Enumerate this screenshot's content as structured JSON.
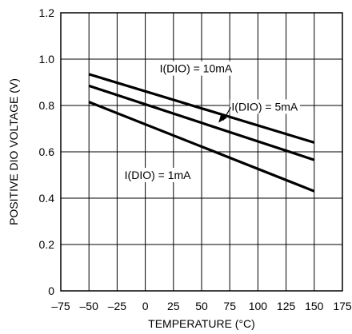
{
  "chart_data": {
    "type": "line",
    "title": "",
    "xlabel": "TEMPERATURE (°C)",
    "ylabel": "POSITIVE DIO VOLTAGE (V)",
    "xlim": [
      -75,
      175
    ],
    "ylim": [
      0,
      1.2
    ],
    "xticks": [
      -75,
      -50,
      -25,
      0,
      25,
      50,
      75,
      100,
      125,
      150,
      175
    ],
    "xtick_labels": [
      "–75",
      "–50",
      "–25",
      "0",
      "25",
      "50",
      "75",
      "100",
      "125",
      "150",
      "175"
    ],
    "yticks": [
      0,
      0.2,
      0.4,
      0.6,
      0.8,
      1.0,
      1.2
    ],
    "ytick_labels": [
      "0",
      "0.2",
      "0.4",
      "0.6",
      "0.8",
      "1.0",
      "1.2"
    ],
    "grid": true,
    "series": [
      {
        "x": [
          -50,
          150
        ],
        "y": [
          0.935,
          0.64
        ]
      },
      {
        "x": [
          -50,
          150
        ],
        "y": [
          0.885,
          0.565
        ]
      },
      {
        "x": [
          -50,
          150
        ],
        "y": [
          0.815,
          0.43
        ]
      }
    ],
    "annotations": [
      {
        "text": "I(DIO) = 10mA",
        "x": 45,
        "y": 0.96
      },
      {
        "text": "I(DIO) = 5mA",
        "x": 106,
        "y": 0.795,
        "arrow_to": [
          65,
          0.726
        ]
      },
      {
        "text": "I(DIO) = 1mA",
        "x": 11,
        "y": 0.5
      }
    ],
    "line_color": "#000000",
    "grid_color": "#000000"
  }
}
